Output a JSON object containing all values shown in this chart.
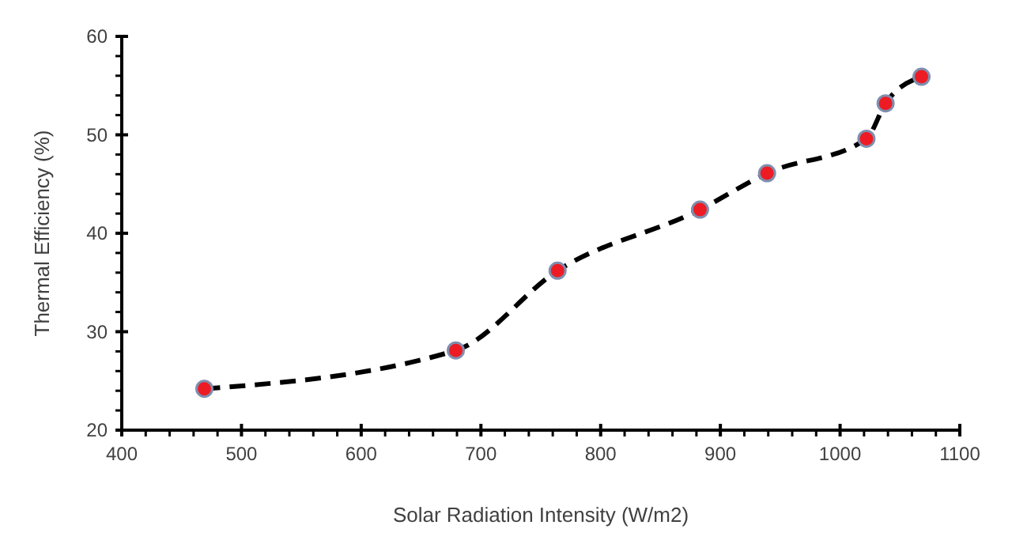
{
  "chart_data": {
    "type": "line",
    "xlabel": "Solar Radiation Intensity (W/m2)",
    "ylabel": "Thermal Efficiency (%)",
    "x": [
      469,
      679,
      764,
      883,
      939,
      1022,
      1038,
      1068
    ],
    "series": [
      {
        "color": "#ed1c24",
        "values": [
          24.2,
          28.1,
          36.2,
          42.4,
          46.1,
          49.6,
          53.2,
          55.9
        ]
      }
    ],
    "xlim": [
      400,
      1100
    ],
    "ylim": [
      20,
      60
    ],
    "xticks": [
      400,
      {
        "value": 420,
        "label": null
      },
      {
        "value": 440,
        "label": null
      },
      {
        "value": 460,
        "label": null
      },
      {
        "value": 480,
        "label": null
      },
      500,
      {
        "value": 520,
        "label": null
      },
      {
        "value": 540,
        "label": null
      },
      {
        "value": 560,
        "label": null
      },
      {
        "value": 580,
        "label": null
      },
      600,
      {
        "value": 620,
        "label": null
      },
      {
        "value": 640,
        "label": null
      },
      {
        "value": 660,
        "label": null
      },
      {
        "value": 680,
        "label": null
      },
      700,
      {
        "value": 720,
        "label": null
      },
      {
        "value": 740,
        "label": null
      },
      {
        "value": 760,
        "label": null
      },
      {
        "value": 780,
        "label": null
      },
      800,
      {
        "value": 820,
        "label": null
      },
      {
        "value": 840,
        "label": null
      },
      {
        "value": 860,
        "label": null
      },
      {
        "value": 880,
        "label": null
      },
      900,
      {
        "value": 920,
        "label": null
      },
      {
        "value": 940,
        "label": null
      },
      {
        "value": 960,
        "label": null
      },
      {
        "value": 980,
        "label": null
      },
      1000,
      {
        "value": 1020,
        "label": null
      },
      {
        "value": 1040,
        "label": null
      },
      {
        "value": 1060,
        "label": null
      },
      {
        "value": 1080,
        "label": null
      },
      1100
    ],
    "yticks": [
      20,
      {
        "value": 22,
        "label": null
      },
      {
        "value": 24,
        "label": null
      },
      {
        "value": 26,
        "label": null
      },
      {
        "value": 28,
        "label": null
      },
      30,
      {
        "value": 32,
        "label": null
      },
      {
        "value": 34,
        "label": null
      },
      {
        "value": 36,
        "label": null
      },
      {
        "value": 38,
        "label": null
      },
      40,
      {
        "value": 42,
        "label": null
      },
      {
        "value": 44,
        "label": null
      },
      {
        "value": 46,
        "label": null
      },
      {
        "value": 48,
        "label": null
      },
      50,
      {
        "value": 52,
        "label": null
      },
      {
        "value": 54,
        "label": null
      },
      {
        "value": 56,
        "label": null
      },
      {
        "value": 58,
        "label": null
      },
      60
    ],
    "marker": "circle",
    "line_style": "dashed"
  }
}
